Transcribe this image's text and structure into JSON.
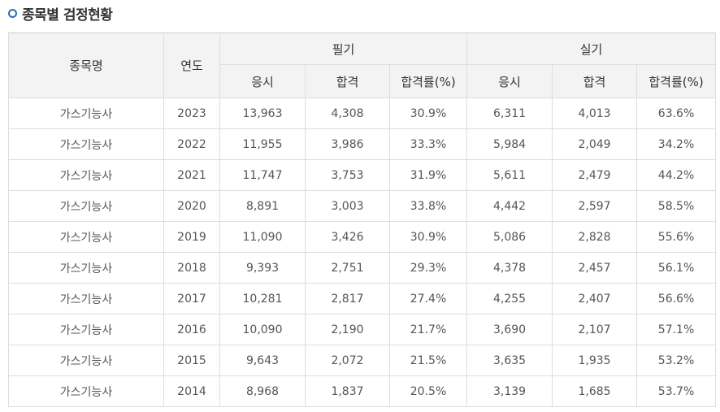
{
  "section": {
    "title": "종목별 검정현황",
    "bullet_icon": "circle-bullet-icon",
    "accent_color": "#2a6cb8"
  },
  "table": {
    "headers": {
      "name": "종목명",
      "year": "연도",
      "written": "필기",
      "practical": "실기",
      "applicants": "응시",
      "passed": "합격",
      "pass_rate": "합격률(%)"
    },
    "rows": [
      {
        "name": "가스기능사",
        "year": "2023",
        "w_app": "13,963",
        "w_pass": "4,308",
        "w_rate": "30.9%",
        "p_app": "6,311",
        "p_pass": "4,013",
        "p_rate": "63.6%"
      },
      {
        "name": "가스기능사",
        "year": "2022",
        "w_app": "11,955",
        "w_pass": "3,986",
        "w_rate": "33.3%",
        "p_app": "5,984",
        "p_pass": "2,049",
        "p_rate": "34.2%"
      },
      {
        "name": "가스기능사",
        "year": "2021",
        "w_app": "11,747",
        "w_pass": "3,753",
        "w_rate": "31.9%",
        "p_app": "5,611",
        "p_pass": "2,479",
        "p_rate": "44.2%"
      },
      {
        "name": "가스기능사",
        "year": "2020",
        "w_app": "8,891",
        "w_pass": "3,003",
        "w_rate": "33.8%",
        "p_app": "4,442",
        "p_pass": "2,597",
        "p_rate": "58.5%"
      },
      {
        "name": "가스기능사",
        "year": "2019",
        "w_app": "11,090",
        "w_pass": "3,426",
        "w_rate": "30.9%",
        "p_app": "5,086",
        "p_pass": "2,828",
        "p_rate": "55.6%"
      },
      {
        "name": "가스기능사",
        "year": "2018",
        "w_app": "9,393",
        "w_pass": "2,751",
        "w_rate": "29.3%",
        "p_app": "4,378",
        "p_pass": "2,457",
        "p_rate": "56.1%"
      },
      {
        "name": "가스기능사",
        "year": "2017",
        "w_app": "10,281",
        "w_pass": "2,817",
        "w_rate": "27.4%",
        "p_app": "4,255",
        "p_pass": "2,407",
        "p_rate": "56.6%"
      },
      {
        "name": "가스기능사",
        "year": "2016",
        "w_app": "10,090",
        "w_pass": "2,190",
        "w_rate": "21.7%",
        "p_app": "3,690",
        "p_pass": "2,107",
        "p_rate": "57.1%"
      },
      {
        "name": "가스기능사",
        "year": "2015",
        "w_app": "9,643",
        "w_pass": "2,072",
        "w_rate": "21.5%",
        "p_app": "3,635",
        "p_pass": "1,935",
        "p_rate": "53.2%"
      },
      {
        "name": "가스기능사",
        "year": "2014",
        "w_app": "8,968",
        "w_pass": "1,837",
        "w_rate": "20.5%",
        "p_app": "3,139",
        "p_pass": "1,685",
        "p_rate": "53.7%"
      }
    ]
  }
}
